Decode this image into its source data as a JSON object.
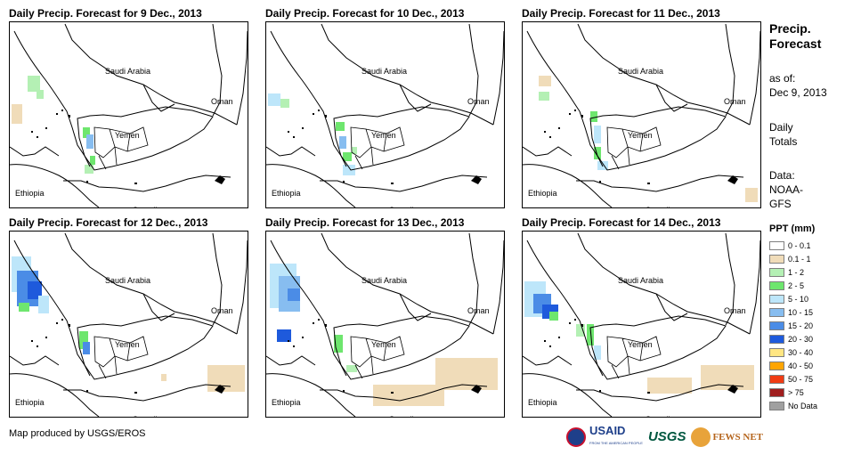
{
  "panels": [
    {
      "title": "Daily Precip. Forecast for 9 Dec., 2013"
    },
    {
      "title": "Daily Precip. Forecast for 10 Dec., 2013"
    },
    {
      "title": "Daily Precip. Forecast for 11 Dec., 2013"
    },
    {
      "title": "Daily Precip. Forecast for 12 Dec., 2013"
    },
    {
      "title": "Daily Precip. Forecast for 13 Dec., 2013"
    },
    {
      "title": "Daily Precip. Forecast for 14 Dec., 2013"
    }
  ],
  "map_labels": {
    "saudi_arabia": "Saudi Arabia",
    "oman": "Oman",
    "yemen": "Yemen",
    "ethiopia": "Ethiopia",
    "somalia": "Somalia"
  },
  "sidebar": {
    "title_line1": "Precip.",
    "title_line2": "Forecast",
    "asof_line1": "as of:",
    "asof_line2": "Dec 9, 2013",
    "totals_line1": "Daily",
    "totals_line2": "Totals",
    "data_line1": "Data:",
    "data_line2": "NOAA-",
    "data_line3": "GFS"
  },
  "legend": {
    "title": "PPT (mm)",
    "items": [
      {
        "label": "0 - 0.1",
        "color": "#ffffff"
      },
      {
        "label": "0.1 - 1",
        "color": "#f0dcb9"
      },
      {
        "label": "1 - 2",
        "color": "#b4f0b4"
      },
      {
        "label": "2 - 5",
        "color": "#6ee66e"
      },
      {
        "label": "5 - 10",
        "color": "#bde6fa"
      },
      {
        "label": "10 - 15",
        "color": "#87bdf0"
      },
      {
        "label": "15 - 20",
        "color": "#4b8ce6"
      },
      {
        "label": "20 - 30",
        "color": "#1e5adc"
      },
      {
        "label": "30 - 40",
        "color": "#ffe682"
      },
      {
        "label": "40 - 50",
        "color": "#ffa500"
      },
      {
        "label": "50 - 75",
        "color": "#f03c14"
      },
      {
        "label": "> 75",
        "color": "#a01e1e"
      },
      {
        "label": "No Data",
        "color": "#a0a0a0"
      }
    ]
  },
  "footer": {
    "credit": "Map produced by USGS/EROS"
  },
  "logos": {
    "usaid": "USAID",
    "usaid_sub": "FROM THE AMERICAN PEOPLE",
    "usgs": "USGS",
    "fews": "FEWS NET"
  }
}
